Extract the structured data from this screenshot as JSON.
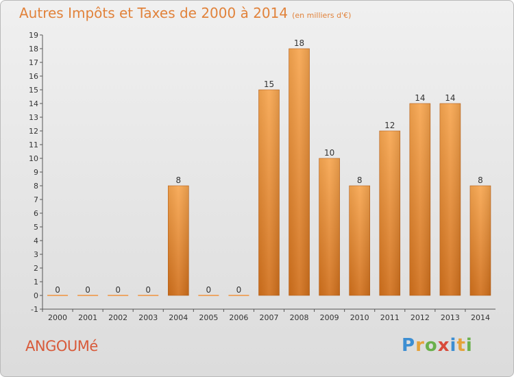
{
  "chart_data": {
    "type": "bar",
    "title": "Autres Impôts et Taxes de 2000 à 2014",
    "subtitle": "(en milliers d'€)",
    "categories": [
      "2000",
      "2001",
      "2002",
      "2003",
      "2004",
      "2005",
      "2006",
      "2007",
      "2008",
      "2009",
      "2010",
      "2011",
      "2012",
      "2013",
      "2014"
    ],
    "values": [
      0,
      0,
      0,
      0,
      8,
      0,
      0,
      15,
      18,
      10,
      8,
      12,
      14,
      14,
      8
    ],
    "ylim": [
      -1,
      19
    ],
    "yticks": [
      -1,
      0,
      1,
      2,
      3,
      4,
      5,
      6,
      7,
      8,
      9,
      10,
      11,
      12,
      13,
      14,
      15,
      16,
      17,
      18,
      19
    ],
    "grid": false,
    "bar_color": "#f0923c"
  },
  "footer": {
    "place": "ANGOUMé",
    "brand_letters": [
      {
        "ch": "P",
        "color": "#3c8ed2"
      },
      {
        "ch": "r",
        "color": "#e5a23a"
      },
      {
        "ch": "o",
        "color": "#6ab04c"
      },
      {
        "ch": "x",
        "color": "#d84a3a"
      },
      {
        "ch": "i",
        "color": "#3c8ed2"
      },
      {
        "ch": "t",
        "color": "#e5a23a"
      },
      {
        "ch": "i",
        "color": "#6ab04c"
      }
    ]
  }
}
